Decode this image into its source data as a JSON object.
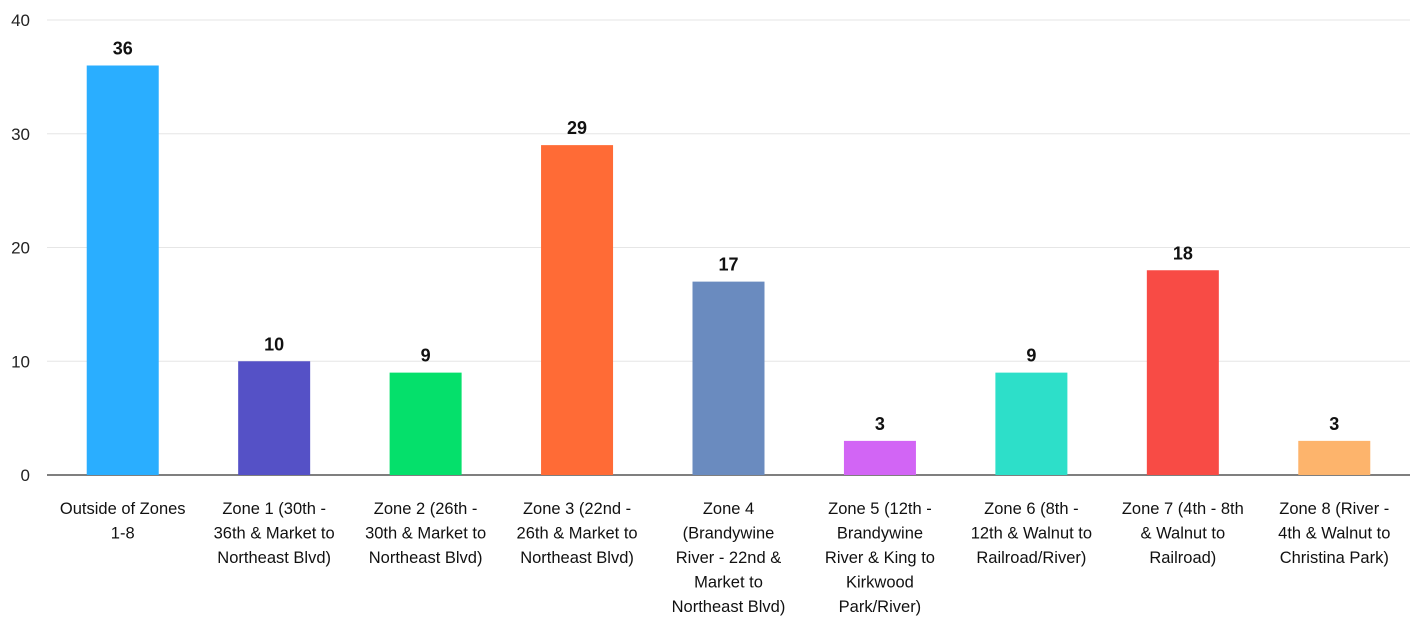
{
  "chart_data": {
    "type": "bar",
    "title": "",
    "xlabel": "",
    "ylabel": "",
    "ylim": [
      0,
      40
    ],
    "yticks": [
      0,
      10,
      20,
      30,
      40
    ],
    "grid": true,
    "legend": "none",
    "categories": [
      [
        "Outside of Zones",
        "1-8"
      ],
      [
        "Zone 1 (30th -",
        "36th & Market to",
        "Northeast Blvd)"
      ],
      [
        "Zone 2 (26th -",
        "30th & Market to",
        "Northeast Blvd)"
      ],
      [
        "Zone 3 (22nd -",
        "26th & Market to",
        "Northeast Blvd)"
      ],
      [
        "Zone 4",
        "(Brandywine",
        "River - 22nd &",
        "Market to",
        "Northeast Blvd)"
      ],
      [
        "Zone 5 (12th -",
        "Brandywine",
        "River & King to",
        "Kirkwood",
        "Park/River)"
      ],
      [
        "Zone 6 (8th -",
        "12th & Walnut to",
        "Railroad/River)"
      ],
      [
        "Zone 7 (4th - 8th",
        "& Walnut to",
        "Railroad)"
      ],
      [
        "Zone 8 (River -",
        "4th & Walnut to",
        "Christina Park)"
      ]
    ],
    "values": [
      36,
      10,
      9,
      29,
      17,
      3,
      9,
      18,
      3
    ],
    "colors": [
      "#2aaeff",
      "#5551c6",
      "#05e06b",
      "#ff6b36",
      "#6a8bbf",
      "#d265f5",
      "#2ddfc9",
      "#f84b45",
      "#fdb46c"
    ]
  }
}
